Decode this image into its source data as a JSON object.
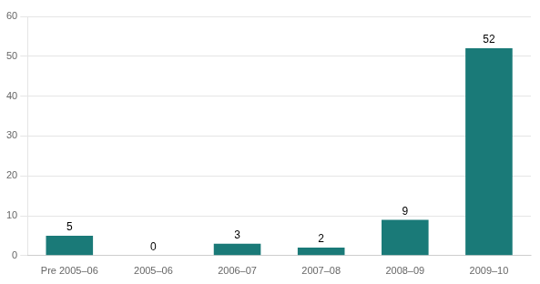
{
  "chart_data": {
    "type": "bar",
    "categories": [
      "Pre 2005–06",
      "2005–06",
      "2006–07",
      "2007–08",
      "2008–09",
      "2009–10"
    ],
    "values": [
      5,
      0,
      3,
      2,
      9,
      52
    ],
    "color": "#1a7a78",
    "ylim": [
      0,
      60
    ],
    "yticks": [
      0,
      10,
      20,
      30,
      40,
      50,
      60
    ],
    "grid": true,
    "data_labels": true
  }
}
